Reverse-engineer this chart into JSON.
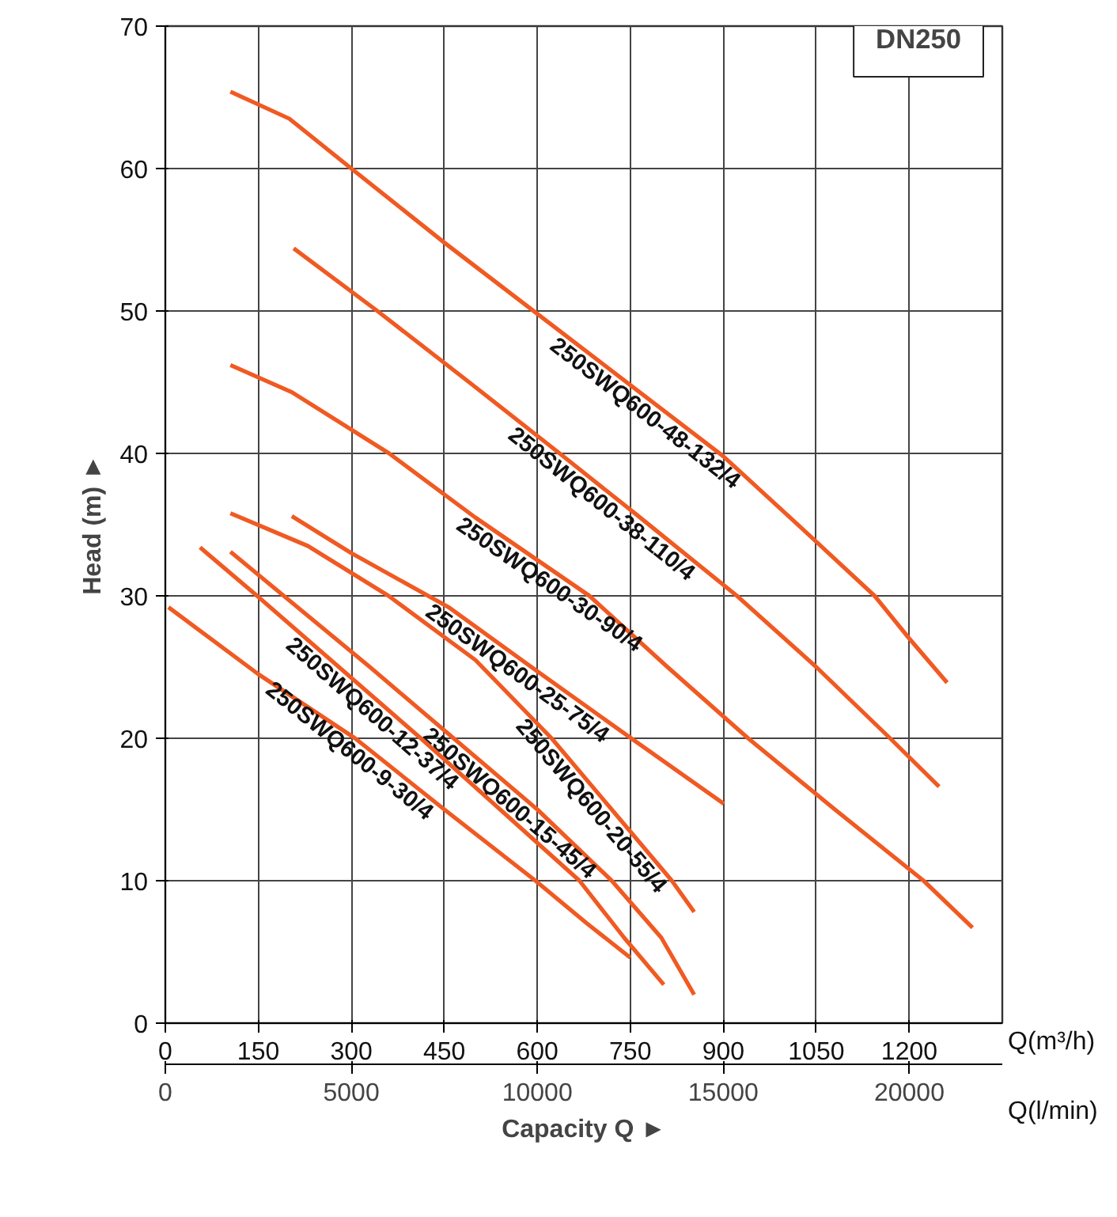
{
  "chart_data": {
    "type": "line",
    "title": "DN250",
    "xlabel": "Q(m³/h)",
    "x2label": "Q(l/min)",
    "ylabel": "Head (m) ►",
    "annotations": [
      "Capacity Q ►"
    ],
    "xlim": [
      0,
      1350
    ],
    "xticks": [
      0,
      150,
      300,
      450,
      600,
      750,
      900,
      1050,
      1200
    ],
    "x2lim": [
      0,
      22500
    ],
    "x2ticks": [
      0,
      5000,
      10000,
      15000,
      20000
    ],
    "ylim": [
      0,
      70
    ],
    "yticks": [
      0,
      10,
      20,
      30,
      40,
      50,
      60,
      70
    ],
    "grid": true,
    "line_style": "solid",
    "marker": "none",
    "series": [
      {
        "name": "250SWQ600-48-132/4",
        "color": "#f05a22",
        "x": [
          105,
          200,
          300,
          450,
          600,
          750,
          900,
          1050,
          1144,
          1200,
          1261
        ],
        "values": [
          65.4,
          63.5,
          60,
          54.8,
          49.8,
          44.8,
          39.8,
          33.8,
          30,
          27,
          23.9
        ]
      },
      {
        "name": "250SWQ600-38-110/4",
        "color": "#f05a22",
        "x": [
          207,
          342,
          490,
          636,
          760,
          922,
          1050,
          1169,
          1248
        ],
        "values": [
          54.4,
          50,
          45,
          40,
          35.7,
          30,
          25,
          20,
          16.6
        ]
      },
      {
        "name": "250SWQ600-30-90/4",
        "color": "#f05a22",
        "x": [
          105,
          204,
          361,
          500,
          684,
          810,
          940,
          1080,
          1223,
          1302
        ],
        "values": [
          46.2,
          44.3,
          40,
          35.5,
          30,
          25,
          20,
          15,
          10,
          6.7
        ]
      },
      {
        "name": "250SWQ600-25-75/4",
        "color": "#f05a22",
        "x": [
          204,
          300,
          457,
          600,
          748,
          901
        ],
        "values": [
          35.6,
          33,
          29.2,
          24.7,
          20.1,
          15.4
        ]
      },
      {
        "name": "250SWQ600-20-55/4",
        "color": "#f05a22",
        "x": [
          105,
          230,
          360,
          500,
          623,
          720,
          817,
          853
        ],
        "values": [
          35.8,
          33.5,
          30,
          25.5,
          20,
          15,
          10,
          7.8
        ]
      },
      {
        "name": "250SWQ600-15-45/4",
        "color": "#f05a22",
        "x": [
          105,
          191,
          330,
          465,
          600,
          720,
          800,
          853
        ],
        "values": [
          33.1,
          30,
          25,
          20,
          15,
          10,
          6,
          2
        ]
      },
      {
        "name": "250SWQ600-12-37/4",
        "color": "#f05a22",
        "x": [
          56,
          148,
          280,
          412,
          540,
          668,
          740,
          804
        ],
        "values": [
          33.4,
          30,
          25,
          20,
          15,
          10,
          6,
          2.7
        ]
      },
      {
        "name": "250SWQ600-9-30/4",
        "color": "#f05a22",
        "x": [
          5,
          150,
          306,
          450,
          597,
          680,
          750
        ],
        "values": [
          29.2,
          24.5,
          20,
          15,
          10,
          7,
          4.6
        ]
      }
    ]
  }
}
